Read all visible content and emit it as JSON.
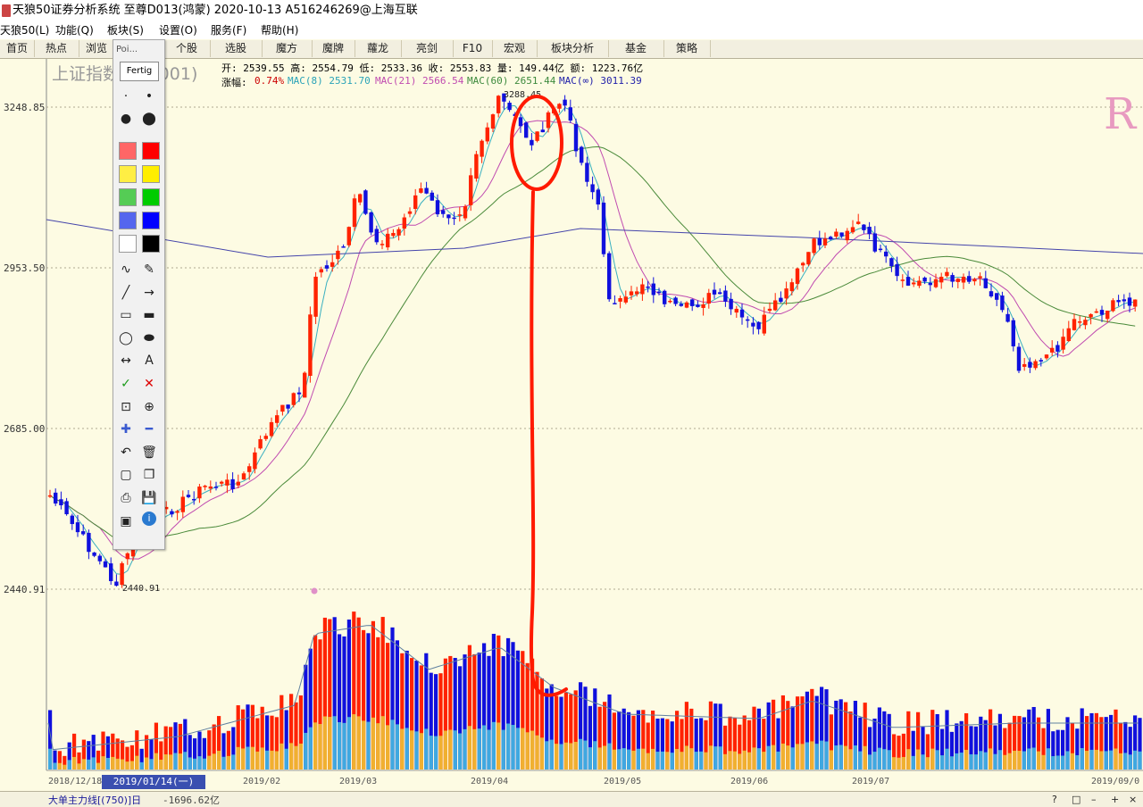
{
  "window": {
    "title": "天狼50证券分析系统 至尊D013(鸿蒙) 2020-10-13 A516246269@上海互联"
  },
  "menu": [
    "天狼50(L)",
    "功能(Q)",
    "板块(S)",
    "设置(O)",
    "服务(F)",
    "帮助(H)"
  ],
  "tabs": [
    "首页",
    "热点",
    "浏览",
    "Poi...",
    "个股",
    "选股",
    "魔方",
    "魔牌",
    "蘿龙",
    "亮剑",
    "F10",
    "宏观",
    "板块分析",
    "基金",
    "策略"
  ],
  "chart": {
    "index_title": "上证指数(000001)",
    "ohlc_line": "开: 2539.55 高: 2554.79 低: 2533.36 收: 2553.83 量: 149.44亿 额: 1223.76亿",
    "change_label": "涨幅:",
    "change_value": "0.74%",
    "ma8": "MAC(8) 2531.70",
    "ma21": "MAC(21) 2566.54",
    "ma60": "MAC(60) 2651.44",
    "ma_inf": "MAC(∞) 3011.39",
    "price_labels": [
      "3248.85",
      "2953.50",
      "2685.00",
      "2440.91"
    ],
    "high_marker": "3288.45",
    "low_marker": "2440.91",
    "date_labels": [
      "2018/12/18",
      "2019/02",
      "2019/03",
      "2019/04",
      "2019/05",
      "2019/06",
      "2019/07",
      "2019/09/0"
    ],
    "selected_date": "2019/01/14(一)",
    "corner_mark": "R"
  },
  "palette": {
    "tab_label": "Poi...",
    "done_label": "Fertig",
    "icons": [
      "dot-small-icon",
      "dot-medium-icon",
      "dot-large-icon",
      "dot-xlarge-icon",
      "freehand-icon",
      "pencil-icon",
      "line-icon",
      "arrow-icon",
      "rect-icon",
      "filled-rect-icon",
      "ellipse-icon",
      "filled-ellipse-icon",
      "double-arrow-icon",
      "text-icon",
      "check-icon",
      "cross-icon",
      "crop-icon",
      "zoom-icon",
      "plus-icon",
      "minus-icon",
      "undo-icon",
      "trash-icon",
      "new-page-icon",
      "copy-icon",
      "print-icon",
      "save-icon",
      "screen-icon",
      "info-icon"
    ],
    "text_icon_glyph": "A",
    "info_glyph": "i",
    "colors": [
      "#ff6666",
      "#ff0000",
      "#ffee44",
      "#ffee00",
      "#55cc55",
      "#00cc00",
      "#5566ee",
      "#0000ff",
      "#ffffff",
      "#000000"
    ]
  },
  "bottom": {
    "indicator_label": "大单主力线[(750)]日",
    "indicator_value": "-1696.62亿"
  },
  "colors": {
    "up": "#ff2200",
    "down": "#1010dd",
    "annotation": "#ff1a00"
  }
}
